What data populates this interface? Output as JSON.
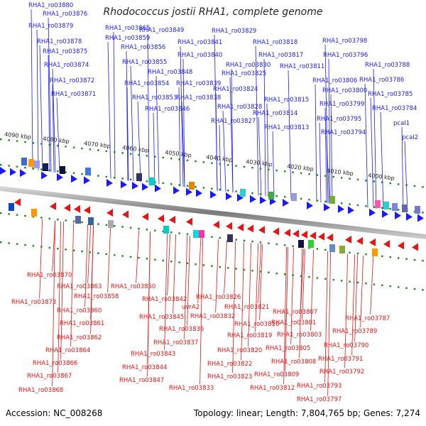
{
  "title": "Rhodococcus jostii RHA1, complete genome",
  "footer": {
    "accession": "Accession: NC_008268",
    "stats": "Topology: linear; Length: 7,804,765 bp; Genes: 7,274"
  },
  "scale_labels": [
    "4090 kbp",
    "4080 kbp",
    "4070 kbp",
    "4060 kbp",
    "4050 kbp",
    "4040 kbp",
    "4030 kbp",
    "4020 kbp",
    "4010 kbp",
    "4000 kbp"
  ],
  "top_genes": [
    "RHA1_ro03880",
    "RHA1_ro03876",
    "RHA1_ro03879",
    "RHA1_ro03878",
    "RHA1_ro03875",
    "RHA1_ro03874",
    "RHA1_ro03872",
    "RHA1_ro03871",
    "RHA1_ro03865",
    "RHA1_ro03859",
    "RHA1_ro03856",
    "RHA1_ro03855",
    "RHA1_ro03854",
    "RHA1_ro03853",
    "RHA1_ro03849",
    "RHA1_ro03841",
    "RHA1_ro03840",
    "RHA1_ro03848",
    "RHA1_ro03839",
    "RHA1_ro03838",
    "RHA1_ro03846",
    "RHA1_ro03829",
    "RHA1_ro03830",
    "RHA1_ro03825",
    "RHA1_ro03824",
    "RHA1_ro03828",
    "RHA1_ro03827",
    "RHA1_ro03818",
    "RHA1_ro03817",
    "RHA1_ro03811",
    "RHA1_ro03815",
    "RHA1_ro03814",
    "RHA1_ro03813",
    "RHA1_ro03798",
    "RHA1_ro03796",
    "RHA1_ro03788",
    "RHA1_ro03806",
    "RHA1_ro03786",
    "RHA1_ro03800",
    "RHA1_ro03785",
    "RHA1_ro03799",
    "RHA1_ro03784",
    "RHA1_ro03795",
    "RHA1_ro03794",
    "pcaI1",
    "pcaI2"
  ],
  "bottom_genes": [
    "RHA1_ro03870",
    "RHA1_ro03873",
    "RHA1_ro03863",
    "RHA1_ro03858",
    "RHA1_ro03850",
    "RHA1_ro03860",
    "RHA1_ro03861",
    "RHA1_ro03862",
    "RHA1_ro03864",
    "RHA1_ro03866",
    "RHA1_ro03867",
    "RHA1_ro03868",
    "RHA1_ro03842",
    "RHA1_ro03826",
    "uvrA2",
    "RHA1_ro03845",
    "RHA1_ro03832",
    "RHA1_ro03836",
    "RHA1_ro03837",
    "RHA1_ro03843",
    "RHA1_ro03844",
    "RHA1_ro03847",
    "RHA1_ro03833",
    "RHA1_ro03821",
    "RHA1_ro03816",
    "RHA1_ro03819",
    "RHA1_ro03820",
    "RHA1_ro03822",
    "RHA1_ro03823",
    "RHA1_ro03807",
    "RHA1_ro03801",
    "RHA1_ro03803",
    "RHA1_ro03805",
    "RHA1_ro03808",
    "RHA1_ro03809",
    "RHA1_ro03812",
    "RHA1_ro03787",
    "RHA1_ro03789",
    "RHA1_ro03790",
    "RHA1_ro03791",
    "RHA1_ro03792",
    "RHA1_ro03793",
    "RHA1_ro03797"
  ],
  "colors": {
    "forward": "#1a1aff",
    "reverse": "#ee1111",
    "scale_dots": "#1a8a1a",
    "backbone": "#888888"
  }
}
